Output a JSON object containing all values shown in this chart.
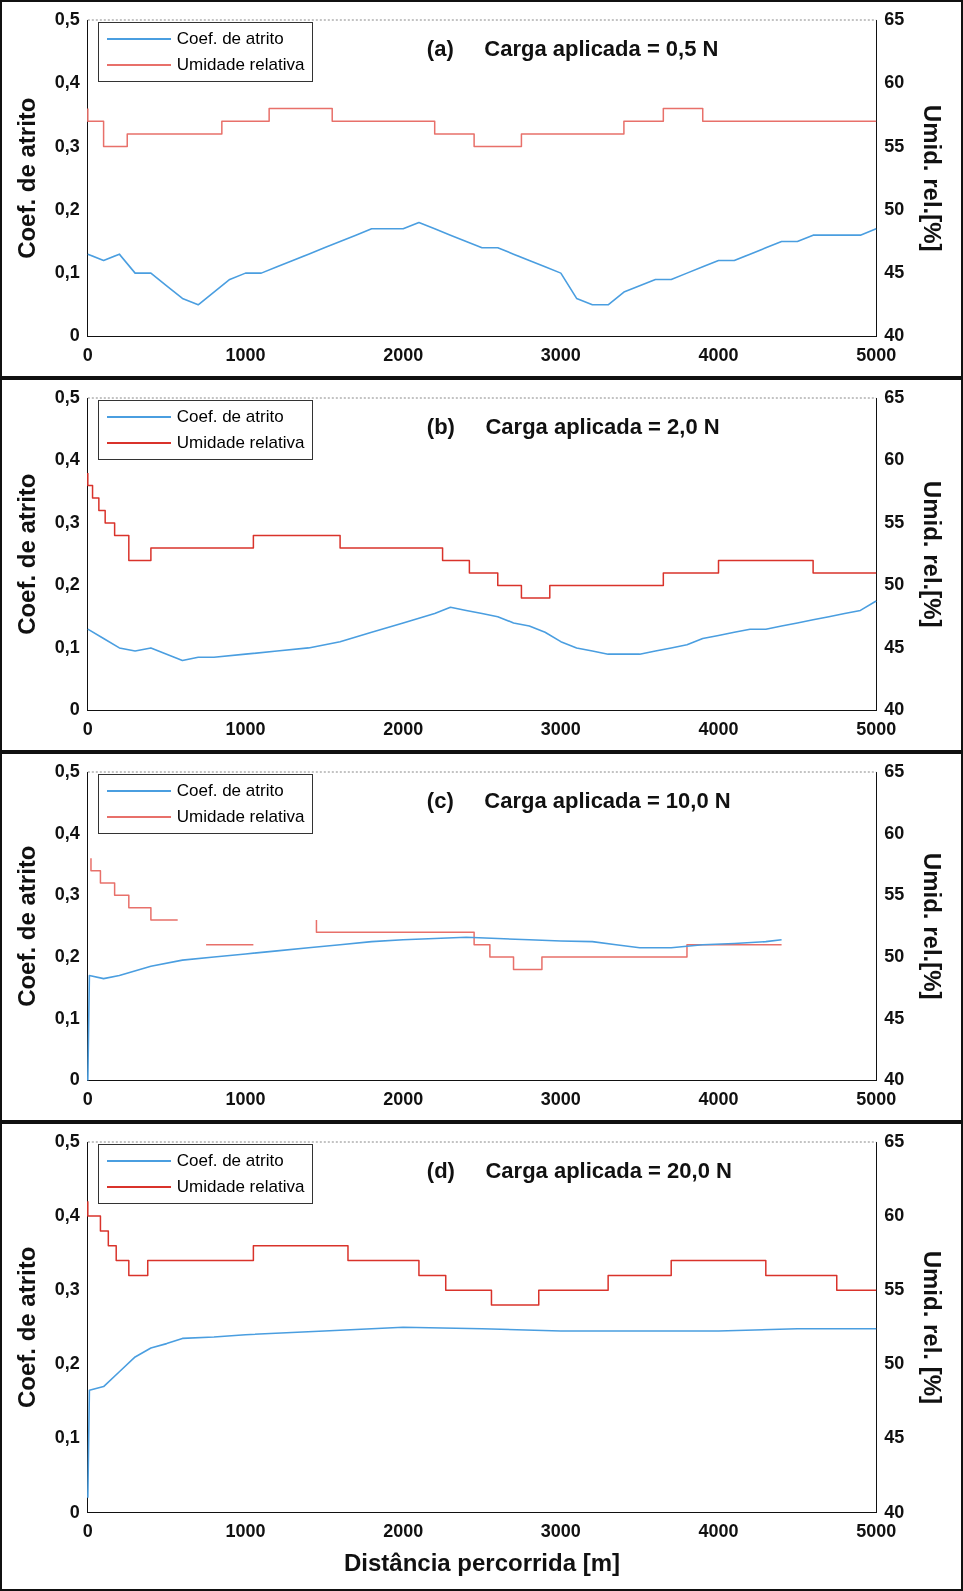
{
  "chart_data": [
    {
      "type": "line",
      "title": "(a)     Carga aplicada = 0,5 N",
      "ylabel": "Coef. de atrito",
      "y2label": "Umid. rel.[%]",
      "legend": "top left",
      "xlim": [
        0,
        5000
      ],
      "xticks": [
        0,
        1000,
        2000,
        3000,
        4000,
        5000
      ],
      "ylim": [
        0,
        0.5
      ],
      "yticks": [
        {
          "value": 0,
          "label": "0"
        },
        {
          "value": 0.1,
          "label": "0,1"
        },
        {
          "value": 0.2,
          "label": "0,2"
        },
        {
          "value": 0.3,
          "label": "0,3"
        },
        {
          "value": 0.4,
          "label": "0,4"
        },
        {
          "value": 0.5,
          "label": "0,5"
        }
      ],
      "y2lim": [
        40,
        65
      ],
      "y2ticks": [
        40,
        45,
        50,
        55,
        60,
        65
      ],
      "series": [
        {
          "name": "Coef. de atrito",
          "color": "#4a9ee0",
          "x": [
            0,
            100,
            200,
            300,
            400,
            500,
            600,
            700,
            800,
            900,
            1000,
            1100,
            1200,
            1300,
            1400,
            1500,
            1600,
            1700,
            1800,
            1900,
            2000,
            2100,
            2200,
            2300,
            2400,
            2500,
            2600,
            2700,
            2800,
            2900,
            3000,
            3100,
            3200,
            3300,
            3400,
            3500,
            3600,
            3700,
            3800,
            3900,
            4000,
            4100,
            4200,
            4300,
            4400,
            4500,
            4600,
            4700,
            4800,
            4900,
            5000
          ],
          "values": [
            0.13,
            0.12,
            0.13,
            0.1,
            0.1,
            0.08,
            0.06,
            0.05,
            0.07,
            0.09,
            0.1,
            0.1,
            0.11,
            0.12,
            0.13,
            0.14,
            0.15,
            0.16,
            0.17,
            0.17,
            0.17,
            0.18,
            0.17,
            0.16,
            0.15,
            0.14,
            0.14,
            0.13,
            0.12,
            0.11,
            0.1,
            0.06,
            0.05,
            0.05,
            0.07,
            0.08,
            0.09,
            0.09,
            0.1,
            0.11,
            0.12,
            0.12,
            0.13,
            0.14,
            0.15,
            0.15,
            0.16,
            0.16,
            0.16,
            0.16,
            0.17
          ]
        },
        {
          "name": "Umidade relativa",
          "type": "step",
          "axis": "y2",
          "color": "#e8706a",
          "x": [
            0,
            100,
            250,
            850,
            1150,
            1550,
            2200,
            2450,
            2750,
            3400,
            3650,
            3900,
            4950,
            5000
          ],
          "values": [
            58,
            57,
            55,
            56,
            57,
            58,
            57,
            56,
            55,
            56,
            57,
            58,
            57,
            57
          ]
        }
      ]
    },
    {
      "type": "line",
      "title": "(b)     Carga aplicada = 2,0 N",
      "ylabel": "Coef. de atrito",
      "y2label": "Umid. rel.[%]",
      "legend": "top left",
      "xlim": [
        0,
        5000
      ],
      "xticks": [
        0,
        1000,
        2000,
        3000,
        4000,
        5000
      ],
      "ylim": [
        0,
        0.5
      ],
      "yticks": [
        {
          "value": 0,
          "label": "0"
        },
        {
          "value": 0.1,
          "label": "0,1"
        },
        {
          "value": 0.2,
          "label": "0,2"
        },
        {
          "value": 0.3,
          "label": "0,3"
        },
        {
          "value": 0.4,
          "label": "0,4"
        },
        {
          "value": 0.5,
          "label": "0,5"
        }
      ],
      "y2lim": [
        40,
        65
      ],
      "y2ticks": [
        40,
        45,
        50,
        55,
        60,
        65
      ],
      "series": [
        {
          "name": "Coef. de atrito",
          "color": "#4a9ee0",
          "x": [
            0,
            100,
            200,
            300,
            400,
            500,
            600,
            700,
            800,
            1000,
            1200,
            1400,
            1600,
            1800,
            2000,
            2200,
            2300,
            2400,
            2500,
            2600,
            2700,
            2800,
            2900,
            3000,
            3100,
            3200,
            3300,
            3400,
            3500,
            3600,
            3700,
            3800,
            3900,
            4000,
            4100,
            4200,
            4300,
            4400,
            4500,
            4600,
            4700,
            4800,
            4900,
            5000
          ],
          "values": [
            0.13,
            0.115,
            0.1,
            0.095,
            0.1,
            0.09,
            0.08,
            0.085,
            0.085,
            0.09,
            0.095,
            0.1,
            0.11,
            0.125,
            0.14,
            0.155,
            0.165,
            0.16,
            0.155,
            0.15,
            0.14,
            0.135,
            0.125,
            0.11,
            0.1,
            0.095,
            0.09,
            0.09,
            0.09,
            0.095,
            0.1,
            0.105,
            0.115,
            0.12,
            0.125,
            0.13,
            0.13,
            0.135,
            0.14,
            0.145,
            0.15,
            0.155,
            0.16,
            0.175
          ]
        },
        {
          "name": "Umidade relativa",
          "type": "step",
          "axis": "y2",
          "color": "#d9332b",
          "x": [
            0,
            30,
            70,
            110,
            170,
            260,
            400,
            1050,
            1600,
            2250,
            2420,
            2600,
            2750,
            2930,
            3650,
            4000,
            4600,
            4900,
            5000
          ],
          "values": [
            59,
            58,
            57,
            56,
            55,
            54,
            52,
            53,
            54,
            53,
            52,
            51,
            50,
            49,
            50,
            51,
            52,
            51,
            51
          ]
        }
      ]
    },
    {
      "type": "line",
      "title": "(c)     Carga aplicada = 10,0 N",
      "ylabel": "Coef. de atrito",
      "y2label": "Umid. rel.[%]",
      "legend": "top left",
      "xlim": [
        0,
        5000
      ],
      "xticks": [
        0,
        1000,
        2000,
        3000,
        4000,
        5000
      ],
      "ylim": [
        0,
        0.5
      ],
      "yticks": [
        {
          "value": 0,
          "label": "0"
        },
        {
          "value": 0.1,
          "label": "0,1"
        },
        {
          "value": 0.2,
          "label": "0,2"
        },
        {
          "value": 0.3,
          "label": "0,3"
        },
        {
          "value": 0.4,
          "label": "0,4"
        },
        {
          "value": 0.5,
          "label": "0,5"
        }
      ],
      "y2lim": [
        40,
        65
      ],
      "y2ticks": [
        40,
        45,
        50,
        55,
        60,
        65
      ],
      "series": [
        {
          "name": "Coef. de atrito",
          "color": "#4a9ee0",
          "x": [
            0,
            10,
            100,
            200,
            400,
            600,
            800,
            1000,
            1200,
            1400,
            1600,
            1800,
            2000,
            2200,
            2400,
            2600,
            2800,
            3000,
            3200,
            3350,
            3500,
            3700,
            3900,
            4100,
            4300,
            4400
          ],
          "values": [
            0,
            0.17,
            0.165,
            0.17,
            0.185,
            0.195,
            0.2,
            0.205,
            0.21,
            0.215,
            0.22,
            0.225,
            0.228,
            0.23,
            0.232,
            0.23,
            0.228,
            0.226,
            0.225,
            0.22,
            0.215,
            0.215,
            0.22,
            0.222,
            0.225,
            0.228
          ]
        },
        {
          "name": "Umidade relativa",
          "type": "step",
          "axis": "y2",
          "color": "#e8706a",
          "x": [
            20,
            80,
            170,
            260,
            400,
            500,
            570,
            600,
            750,
            1050,
            1100,
            1450,
            2450,
            2550,
            2700,
            2880,
            3800,
            4150,
            4400
          ],
          "values": [
            58,
            57,
            56,
            55,
            54,
            53,
            53,
            null,
            51,
            51,
            null,
            53,
            52,
            51,
            50,
            49,
            50,
            51,
            51
          ]
        }
      ]
    },
    {
      "type": "line",
      "title": "(d)     Carga aplicada = 20,0 N",
      "xlabel": "Distância percorrida [m]",
      "ylabel": "Coef. de atrito",
      "y2label": "Umid. rel. [%]",
      "legend": "top left",
      "xlim": [
        0,
        5000
      ],
      "xticks": [
        0,
        1000,
        2000,
        3000,
        4000,
        5000
      ],
      "ylim": [
        0,
        0.5
      ],
      "yticks": [
        {
          "value": 0,
          "label": "0"
        },
        {
          "value": 0.1,
          "label": "0,1"
        },
        {
          "value": 0.2,
          "label": "0,2"
        },
        {
          "value": 0.3,
          "label": "0,3"
        },
        {
          "value": 0.4,
          "label": "0,4"
        },
        {
          "value": 0.5,
          "label": "0,5"
        }
      ],
      "y2lim": [
        40,
        65
      ],
      "y2ticks": [
        40,
        45,
        50,
        55,
        60,
        65
      ],
      "series": [
        {
          "name": "Coef. de atrito",
          "color": "#4a9ee0",
          "x": [
            0,
            10,
            100,
            200,
            300,
            400,
            500,
            600,
            800,
            1000,
            1500,
            2000,
            2500,
            3000,
            3500,
            4000,
            4500,
            5000
          ],
          "values": [
            0.02,
            0.165,
            0.17,
            0.19,
            0.21,
            0.222,
            0.228,
            0.235,
            0.237,
            0.24,
            0.245,
            0.25,
            0.248,
            0.245,
            0.245,
            0.245,
            0.248,
            0.248
          ]
        },
        {
          "name": "Umidade relativa",
          "type": "step",
          "axis": "y2",
          "color": "#d9332b",
          "x": [
            0,
            80,
            130,
            180,
            260,
            380,
            1050,
            1650,
            2100,
            2270,
            2560,
            2860,
            3300,
            3700,
            4300,
            4750,
            4950,
            5000
          ],
          "values": [
            61,
            60,
            59,
            58,
            57,
            56,
            57,
            58,
            57,
            56,
            55,
            54,
            55,
            56,
            57,
            56,
            55,
            55
          ]
        }
      ]
    }
  ]
}
